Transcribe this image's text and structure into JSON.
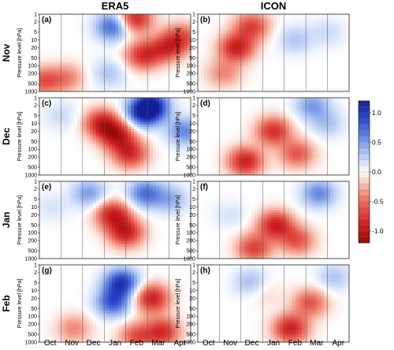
{
  "chart_data": {
    "type": "heatmap",
    "columns": [
      "ERA5",
      "ICON"
    ],
    "rows": [
      "Nov",
      "Dec",
      "Jan",
      "Feb"
    ],
    "panel_labels": [
      "(a)",
      "(b)",
      "(c)",
      "(d)",
      "(e)",
      "(f)",
      "(g)",
      "(h)"
    ],
    "ylabel": "Pressure level [hPa]",
    "y_ticks": [
      "1",
      "2",
      "5",
      "10",
      "20",
      "50",
      "100",
      "200",
      "500",
      "1000"
    ],
    "y_scale": "log",
    "y_inverted": true,
    "ylim": [
      1000,
      1
    ],
    "x_ticks": [
      "Oct",
      "Nov",
      "Dec",
      "Jan",
      "Feb",
      "Mar",
      "Apr"
    ],
    "colorbar": {
      "ticks": [
        "1.0",
        "0.5",
        "0.0",
        "-0.5",
        "-1.0"
      ],
      "range": [
        -1.2,
        1.2
      ],
      "colors_pos": "#1a2fb8",
      "colors_neg": "#b01818",
      "center": "#ffffff"
    },
    "panels": [
      {
        "id": "a",
        "blobs": [
          {
            "t": 4.4,
            "p": 1.5,
            "v": -0.9
          },
          {
            "t": 4.8,
            "p": 40,
            "v": -0.8
          },
          {
            "t": 5.9,
            "p": 20,
            "v": -0.7
          },
          {
            "t": 6.6,
            "p": 8,
            "v": -0.6
          },
          {
            "t": 3.4,
            "p": 3,
            "v": 0.8
          },
          {
            "t": 0.2,
            "p": 400,
            "v": -0.6
          },
          {
            "t": 3.2,
            "p": 200,
            "v": 0.3
          },
          {
            "t": 1.3,
            "p": 300,
            "v": -0.4
          }
        ]
      },
      {
        "id": "b",
        "blobs": [
          {
            "t": 1.8,
            "p": 20,
            "v": -0.9
          },
          {
            "t": 2.5,
            "p": 3,
            "v": -0.7
          },
          {
            "t": 1.2,
            "p": 200,
            "v": -0.4
          },
          {
            "t": 4.5,
            "p": 10,
            "v": 0.3
          },
          {
            "t": 6.0,
            "p": 5,
            "v": 0.2
          }
        ]
      },
      {
        "id": "c",
        "blobs": [
          {
            "t": 2.9,
            "p": 10,
            "v": -0.9
          },
          {
            "t": 3.6,
            "p": 30,
            "v": -0.9
          },
          {
            "t": 4.2,
            "p": 150,
            "v": -0.8
          },
          {
            "t": 4.8,
            "p": 4,
            "v": 0.9
          },
          {
            "t": 5.2,
            "p": 2,
            "v": 1.0
          },
          {
            "t": 6.7,
            "p": 20,
            "v": 0.6
          },
          {
            "t": 1.0,
            "p": 5,
            "v": 0.2
          }
        ]
      },
      {
        "id": "d",
        "blobs": [
          {
            "t": 3.5,
            "p": 20,
            "v": -0.8
          },
          {
            "t": 2.2,
            "p": 300,
            "v": -0.9
          },
          {
            "t": 4.6,
            "p": 150,
            "v": -0.6
          },
          {
            "t": 5.3,
            "p": 2,
            "v": 0.5
          },
          {
            "t": 6.0,
            "p": 10,
            "v": 0.3
          }
        ]
      },
      {
        "id": "e",
        "blobs": [
          {
            "t": 3.4,
            "p": 20,
            "v": -0.9
          },
          {
            "t": 4.0,
            "p": 100,
            "v": -0.9
          },
          {
            "t": 2.3,
            "p": 3,
            "v": 0.5
          },
          {
            "t": 4.9,
            "p": 3,
            "v": 0.7
          },
          {
            "t": 6.1,
            "p": 5,
            "v": 0.4
          },
          {
            "t": 0.6,
            "p": 10,
            "v": 0.15
          }
        ]
      },
      {
        "id": "f",
        "blobs": [
          {
            "t": 3.6,
            "p": 50,
            "v": -0.9
          },
          {
            "t": 2.6,
            "p": 400,
            "v": -0.7
          },
          {
            "t": 4.6,
            "p": 200,
            "v": -0.6
          },
          {
            "t": 5.6,
            "p": 3,
            "v": 0.6
          },
          {
            "t": 1.5,
            "p": 20,
            "v": 0.15
          }
        ]
      },
      {
        "id": "g",
        "blobs": [
          {
            "t": 3.8,
            "p": 5,
            "v": 1.0
          },
          {
            "t": 3.4,
            "p": 30,
            "v": 0.8
          },
          {
            "t": 5.2,
            "p": 20,
            "v": -0.9
          },
          {
            "t": 5.7,
            "p": 400,
            "v": -0.8
          },
          {
            "t": 1.6,
            "p": 300,
            "v": -0.4
          },
          {
            "t": 4.5,
            "p": 600,
            "v": -0.6
          }
        ]
      },
      {
        "id": "h",
        "blobs": [
          {
            "t": 4.3,
            "p": 300,
            "v": -0.9
          },
          {
            "t": 5.2,
            "p": 30,
            "v": -0.6
          },
          {
            "t": 2.5,
            "p": 5,
            "v": 0.4
          },
          {
            "t": 3.0,
            "p": 10,
            "v": -0.2
          },
          {
            "t": 6.3,
            "p": 3,
            "v": 0.3
          }
        ]
      }
    ]
  }
}
